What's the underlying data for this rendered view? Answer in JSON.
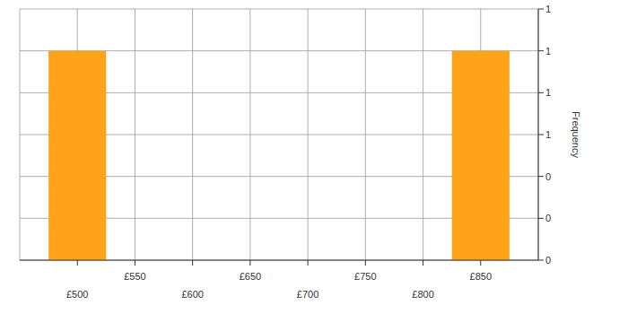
{
  "chart_data": {
    "type": "histogram",
    "y_label": "Frequency",
    "bins": [
      475,
      525,
      575,
      625,
      675,
      725,
      775,
      825,
      875
    ],
    "values": [
      1,
      0,
      0,
      0,
      0,
      0,
      0,
      1
    ],
    "color": "#ffa31a",
    "xlim": [
      450,
      900
    ],
    "xticks": [
      {
        "value": 500,
        "label": "£500"
      },
      {
        "value": 550,
        "label": "£550"
      },
      {
        "value": 600,
        "label": "£600"
      },
      {
        "value": 650,
        "label": "£650"
      },
      {
        "value": 700,
        "label": "£700"
      },
      {
        "value": 750,
        "label": "£750"
      },
      {
        "value": 800,
        "label": "£800"
      },
      {
        "value": 850,
        "label": "£850"
      }
    ],
    "ylim": [
      0,
      1.2
    ],
    "yticks": [
      0,
      {
        "value": 0.2,
        "label": "0"
      },
      {
        "value": 0.4,
        "label": "0"
      },
      {
        "value": 0.6,
        "label": "1"
      },
      {
        "value": 0.8,
        "label": "1"
      },
      1,
      {
        "value": 1.2,
        "label": "1"
      }
    ],
    "grid": true
  }
}
